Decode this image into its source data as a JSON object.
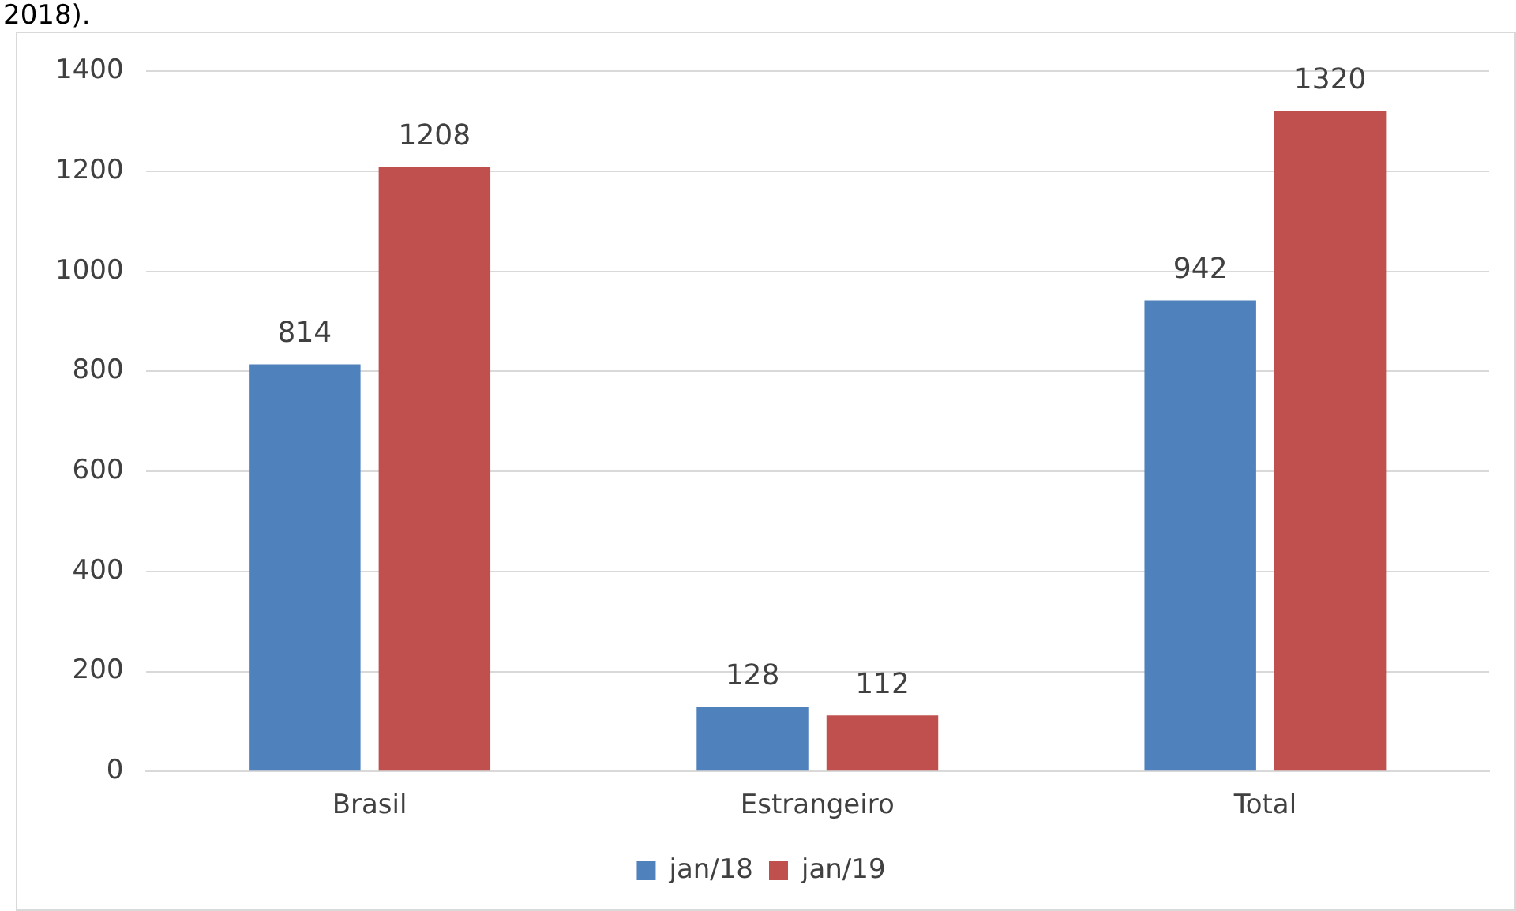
{
  "chart_data": {
    "type": "bar",
    "annotations": [
      "2018)."
    ],
    "categories": [
      "Brasil",
      "Estrangeiro",
      "Total"
    ],
    "series": [
      {
        "name": "jan/18",
        "color": "#4f81bd",
        "values": [
          814,
          128,
          942
        ]
      },
      {
        "name": "jan/19",
        "color": "#c0504d",
        "values": [
          1208,
          112,
          1320
        ]
      }
    ],
    "ylim": [
      0,
      1400
    ],
    "yticks": [
      0,
      200,
      400,
      600,
      800,
      1000,
      1200,
      1400
    ],
    "grid": "y",
    "legend": "bottom",
    "data_labels": true
  }
}
